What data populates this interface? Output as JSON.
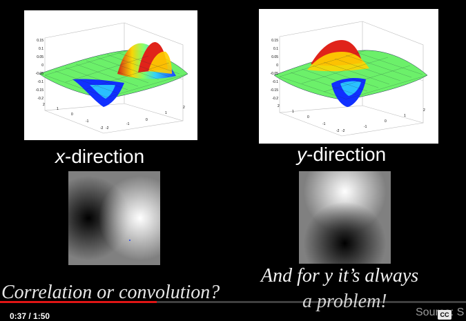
{
  "left_panel": {
    "ticks_z": [
      "0.15",
      "0.1",
      "0.05",
      "0",
      "-0.05",
      "-0.1",
      "-0.15",
      "-0.2"
    ],
    "ticks_x": [
      "2",
      "1",
      "0",
      "-1",
      "-2"
    ],
    "ticks_y": [
      "-2",
      "-1",
      "0",
      "1",
      "2"
    ],
    "label_var": "x",
    "label_rest": "-direction"
  },
  "right_panel": {
    "ticks_z": [
      "0.15",
      "0.1",
      "0.05",
      "0",
      "-0.05",
      "-0.1",
      "-0.15",
      "-0.2"
    ],
    "ticks_x": [
      "2",
      "1",
      "0",
      "-1",
      "-2"
    ],
    "ticks_y": [
      "-2",
      "-1",
      "0",
      "1",
      "2"
    ],
    "label_var": "y",
    "label_rest": "-direction"
  },
  "captions": {
    "left": "Correlation or convolution?",
    "right_line1": "And for y it’s always",
    "right_line2": "a problem!"
  },
  "source_text": "Source: S",
  "player": {
    "time": "0:37 / 1:50",
    "progress_fraction": 0.336,
    "cc_label": "CC",
    "accent_color": "#e01515"
  }
}
